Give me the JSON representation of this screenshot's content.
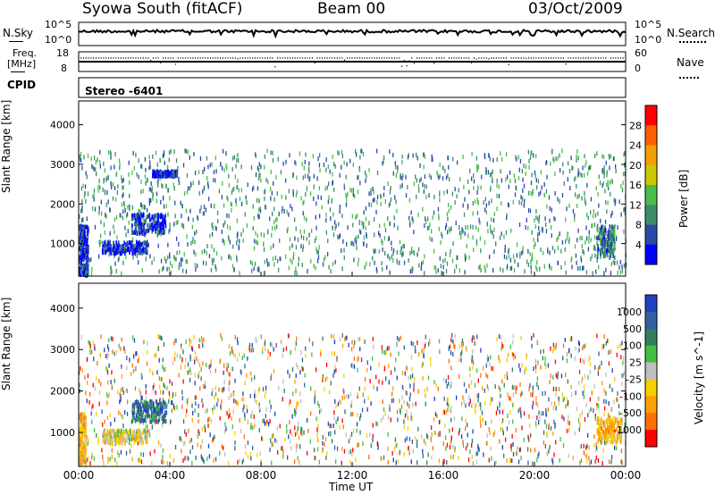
{
  "header": {
    "station": "Syowa South (fitACF)",
    "beam": "Beam 00",
    "date": "03/Oct/2009"
  },
  "noise_panel": {
    "left_label": "N.Sky",
    "left_ticks": [
      "10^5",
      "10^0"
    ],
    "right_label": "N.Search",
    "right_ticks": [
      "10^5",
      "10^0"
    ]
  },
  "freq_panel": {
    "left_label_line1": "Freq.",
    "left_label_line2": "[MHz]",
    "left_ticks": [
      "18",
      "8"
    ],
    "right_label": "Nave",
    "right_ticks": [
      "60",
      "0"
    ]
  },
  "cpid_panel": {
    "label": "CPID",
    "value": "Stereo  -6401"
  },
  "x_axis": {
    "label": "Time UT",
    "ticks": [
      "00:00",
      "04:00",
      "08:00",
      "12:00",
      "16:00",
      "20:00",
      "00:00"
    ]
  },
  "colors": {
    "power_scale": [
      "#0000ff",
      "#2a4aa8",
      "#3c8e6a",
      "#4bbd4b",
      "#c8c800",
      "#f0a000",
      "#ff6000",
      "#ff0000"
    ],
    "velocity_scale": [
      "#2040c0",
      "#3060a0",
      "#307f60",
      "#40c040",
      "#c0c0c0",
      "#f5d000",
      "#ffa000",
      "#ff7000",
      "#ff0000"
    ]
  },
  "chart_data": [
    {
      "type": "heatmap",
      "name": "power",
      "ylabel": "Slant Range [km]",
      "yticks": [
        1000,
        2000,
        3000,
        4000
      ],
      "ylim": [
        180,
        4600
      ],
      "xlim_hours": [
        0,
        24
      ],
      "colorbar_label": "Power [dB]",
      "colorbar_ticks": [
        4,
        8,
        12,
        16,
        20,
        24,
        28
      ],
      "colorbar_range": [
        0,
        32
      ],
      "regions": [
        {
          "x": [
            2.3,
            3.8
          ],
          "y": [
            1300,
            1800
          ],
          "level": 1
        },
        {
          "x": [
            1.0,
            3.0
          ],
          "y": [
            800,
            1100
          ],
          "level": 1
        },
        {
          "x": [
            3.2,
            4.3
          ],
          "y": [
            2750,
            2880
          ],
          "level": 1
        },
        {
          "x": [
            22.7,
            23.5
          ],
          "y": [
            700,
            1500
          ],
          "level": 2
        },
        {
          "x": [
            0.0,
            0.4
          ],
          "y": [
            250,
            1500
          ],
          "level": 1
        }
      ]
    },
    {
      "type": "heatmap",
      "name": "velocity",
      "ylabel": "Slant Range [km]",
      "yticks": [
        1000,
        2000,
        3000,
        4000
      ],
      "ylim": [
        180,
        4600
      ],
      "xlim_hours": [
        0,
        24
      ],
      "colorbar_label": "Velocity [m s^-1]",
      "colorbar_ticks": [
        1000,
        500,
        100,
        25,
        -25,
        -100,
        -500,
        -1000
      ],
      "regions": [
        {
          "x": [
            2.3,
            3.8
          ],
          "y": [
            1300,
            1800
          ],
          "level": 2
        },
        {
          "x": [
            1.0,
            3.0
          ],
          "y": [
            800,
            1100
          ],
          "level": 5
        },
        {
          "x": [
            22.7,
            23.8
          ],
          "y": [
            800,
            1400
          ],
          "level": 6
        },
        {
          "x": [
            0.0,
            0.3
          ],
          "y": [
            250,
            1500
          ],
          "level": 6
        }
      ]
    }
  ]
}
